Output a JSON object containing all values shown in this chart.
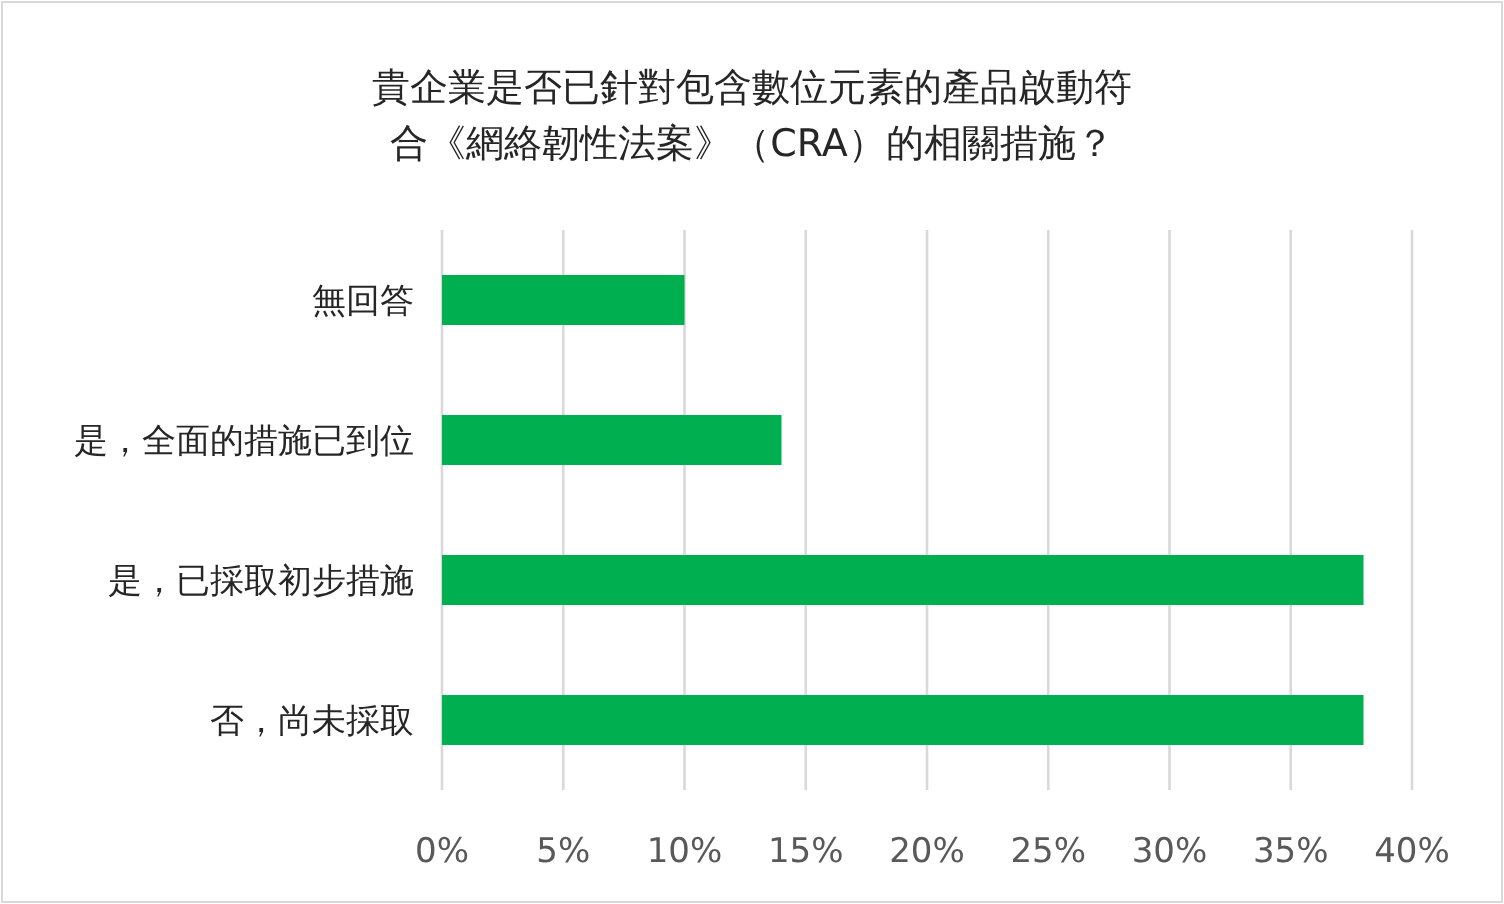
{
  "chart_data": {
    "type": "bar",
    "orientation": "horizontal",
    "title": "貴企業是否已針對包含數位元素的產品啟動符合《網絡韌性法案》（CRA）的相關措施？",
    "categories": [
      "無回答",
      "是，全面的措施已到位",
      "是，已採取初步措施",
      "否，尚未採取"
    ],
    "values": [
      10,
      14,
      38,
      38
    ],
    "color": "#00b050",
    "xlim": [
      0,
      40
    ],
    "xticks": [
      {
        "value": 0,
        "label": "0%"
      },
      {
        "value": 5,
        "label": "5%"
      },
      {
        "value": 10,
        "label": "10%"
      },
      {
        "value": 15,
        "label": "15%"
      },
      {
        "value": 20,
        "label": "20%"
      },
      {
        "value": 25,
        "label": "25%"
      },
      {
        "value": 30,
        "label": "30%"
      },
      {
        "value": 35,
        "label": "35%"
      },
      {
        "value": 40,
        "label": "40%"
      }
    ],
    "grid": "x"
  }
}
